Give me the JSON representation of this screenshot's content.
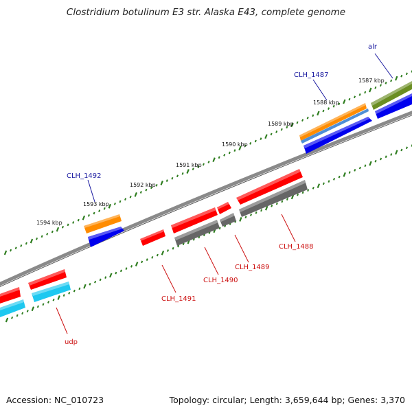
{
  "title": "Clostridium botulinum E3 str. Alaska E43, complete genome",
  "footer": {
    "accession": "Accession: NC_010723",
    "topology": "Topology: circular; Length: 3,659,644 bp; Genes: 3,370"
  },
  "colors": {
    "backbone": "#8a8a8a",
    "tick": "#2e7d1f",
    "label_forward": "#1a1aa0",
    "label_reverse": "#cc1010"
  },
  "kbp_labels": [
    "1587 kbp",
    "1588 kbp",
    "1589 kbp",
    "1590 kbp",
    "1591 kbp",
    "1592 kbp",
    "1593 kbp",
    "1594 kbp"
  ],
  "gene_labels": [
    {
      "id": "alr",
      "text": "alr",
      "strand": "forward"
    },
    {
      "id": "clh-1487",
      "text": "CLH_1487",
      "strand": "forward"
    },
    {
      "id": "clh-1492",
      "text": "CLH_1492",
      "strand": "forward"
    },
    {
      "id": "clh-1488",
      "text": "CLH_1488",
      "strand": "reverse"
    },
    {
      "id": "clh-1489",
      "text": "CLH_1489",
      "strand": "reverse"
    },
    {
      "id": "clh-1490",
      "text": "CLH_1490",
      "strand": "reverse"
    },
    {
      "id": "clh-1491",
      "text": "CLH_1491",
      "strand": "reverse"
    },
    {
      "id": "udp",
      "text": "udp",
      "strand": "reverse"
    }
  ]
}
